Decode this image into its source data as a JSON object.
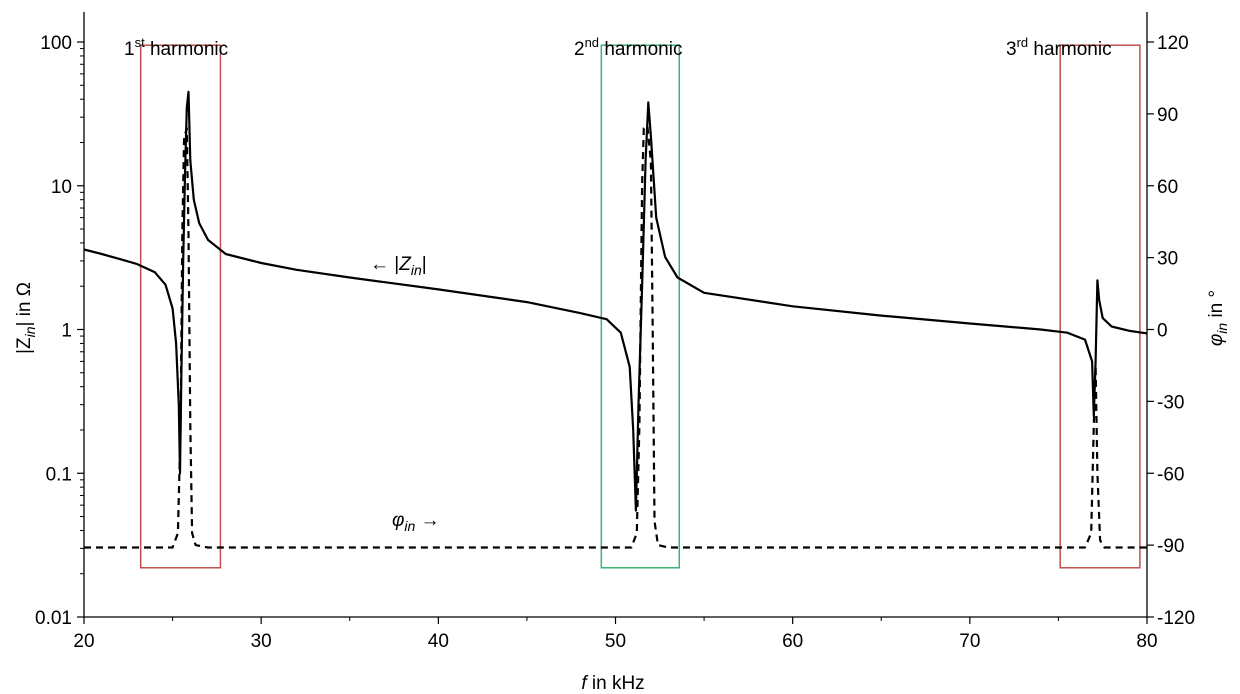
{
  "chart_data": {
    "type": "line",
    "x_axis": {
      "label_var": "f",
      "label_rest": " in kHz",
      "range": [
        20,
        80
      ],
      "ticks": [
        20,
        30,
        40,
        50,
        60,
        70,
        80
      ],
      "tick_labels": [
        "20",
        "30",
        "40",
        "50",
        "60",
        "70",
        "80"
      ]
    },
    "y_left": {
      "label_prefix": "|Z",
      "label_sub": "in",
      "label_suffix": "| in Ω",
      "scale": "log",
      "range": [
        0.01,
        100
      ],
      "ticks": [
        0.01,
        0.1,
        1,
        10,
        100
      ],
      "tick_labels": [
        "0.01",
        "0.1",
        "1",
        "10",
        "100"
      ]
    },
    "y_right": {
      "label_var": "φ",
      "label_sub": "in",
      "label_suffix": " in °",
      "range": [
        -120,
        120
      ],
      "ticks": [
        -120,
        -90,
        -60,
        -30,
        0,
        30,
        60,
        90,
        120
      ],
      "tick_labels": [
        "-120",
        "-90",
        "-60",
        "-30",
        "0",
        "30",
        "60",
        "90",
        "120"
      ]
    },
    "series": [
      {
        "axis": "left",
        "style": "solid",
        "color": "#000000",
        "points": [
          [
            20,
            3.6
          ],
          [
            21,
            3.35
          ],
          [
            22,
            3.1
          ],
          [
            23,
            2.85
          ],
          [
            24,
            2.5
          ],
          [
            24.6,
            2.05
          ],
          [
            25,
            1.4
          ],
          [
            25.2,
            0.8
          ],
          [
            25.35,
            0.3
          ],
          [
            25.42,
            0.1
          ],
          [
            25.5,
            0.5
          ],
          [
            25.6,
            3.0
          ],
          [
            25.7,
            12
          ],
          [
            25.8,
            35
          ],
          [
            25.9,
            45
          ],
          [
            26.0,
            15
          ],
          [
            26.2,
            8
          ],
          [
            26.5,
            5.5
          ],
          [
            27,
            4.2
          ],
          [
            28,
            3.35
          ],
          [
            30,
            2.9
          ],
          [
            32,
            2.6
          ],
          [
            35,
            2.3
          ],
          [
            40,
            1.9
          ],
          [
            45,
            1.55
          ],
          [
            48,
            1.3
          ],
          [
            49.5,
            1.18
          ],
          [
            50.3,
            0.95
          ],
          [
            50.8,
            0.55
          ],
          [
            51.0,
            0.2
          ],
          [
            51.15,
            0.055
          ],
          [
            51.3,
            0.3
          ],
          [
            51.5,
            2.0
          ],
          [
            51.7,
            15
          ],
          [
            51.85,
            38
          ],
          [
            52.0,
            22
          ],
          [
            52.3,
            6
          ],
          [
            52.8,
            3.2
          ],
          [
            53.5,
            2.3
          ],
          [
            55,
            1.8
          ],
          [
            60,
            1.45
          ],
          [
            65,
            1.25
          ],
          [
            70,
            1.1
          ],
          [
            74,
            1.0
          ],
          [
            75.5,
            0.95
          ],
          [
            76.5,
            0.85
          ],
          [
            76.9,
            0.6
          ],
          [
            77.0,
            0.25
          ],
          [
            77.1,
            0.6
          ],
          [
            77.2,
            2.2
          ],
          [
            77.3,
            1.6
          ],
          [
            77.5,
            1.2
          ],
          [
            78,
            1.05
          ],
          [
            79,
            0.98
          ],
          [
            80,
            0.94
          ]
        ]
      },
      {
        "axis": "right",
        "style": "dashed",
        "color": "#000000",
        "points": [
          [
            20,
            -91
          ],
          [
            24,
            -91
          ],
          [
            25.0,
            -91
          ],
          [
            25.3,
            -85
          ],
          [
            25.45,
            -40
          ],
          [
            25.55,
            40
          ],
          [
            25.65,
            80
          ],
          [
            25.8,
            84
          ],
          [
            25.9,
            40
          ],
          [
            26.0,
            -40
          ],
          [
            26.1,
            -85
          ],
          [
            26.3,
            -90
          ],
          [
            27,
            -91
          ],
          [
            35,
            -91
          ],
          [
            50,
            -91
          ],
          [
            50.9,
            -91
          ],
          [
            51.2,
            -85
          ],
          [
            51.35,
            -40
          ],
          [
            51.5,
            60
          ],
          [
            51.6,
            84
          ],
          [
            51.8,
            85
          ],
          [
            52.0,
            70
          ],
          [
            52.1,
            0
          ],
          [
            52.2,
            -80
          ],
          [
            52.4,
            -90
          ],
          [
            53,
            -91
          ],
          [
            70,
            -91
          ],
          [
            76.5,
            -91
          ],
          [
            76.85,
            -85
          ],
          [
            77.0,
            -40
          ],
          [
            77.1,
            -15
          ],
          [
            77.2,
            -60
          ],
          [
            77.35,
            -88
          ],
          [
            77.6,
            -91
          ],
          [
            80,
            -91
          ]
        ]
      }
    ],
    "boxes": [
      {
        "x": [
          23.2,
          27.7
        ],
        "y": [
          0.022,
          95
        ],
        "color": "#c0504d"
      },
      {
        "x": [
          49.2,
          53.6
        ],
        "y": [
          0.022,
          95
        ],
        "color": "#3cb371"
      },
      {
        "x": [
          75.1,
          79.6
        ],
        "y": [
          0.022,
          95
        ],
        "color": "#c0504d"
      }
    ],
    "annotations": [
      {
        "name": "annotation-1st-harmonic",
        "num": "1",
        "sup": "st",
        "rest": " harmonic"
      },
      {
        "name": "annotation-2nd-harmonic",
        "num": "2",
        "sup": "nd",
        "rest": " harmonic"
      },
      {
        "name": "annotation-3rd-harmonic",
        "num": "3",
        "sup": "rd",
        "rest": " harmonic"
      }
    ],
    "curve_labels": {
      "z_arrow": "← ",
      "z_prefix": "|",
      "z_var": "Z",
      "z_sub": "in",
      "z_suffix": "|",
      "phi_var": "φ",
      "phi_sub": "in",
      "phi_arrow": " →"
    }
  }
}
